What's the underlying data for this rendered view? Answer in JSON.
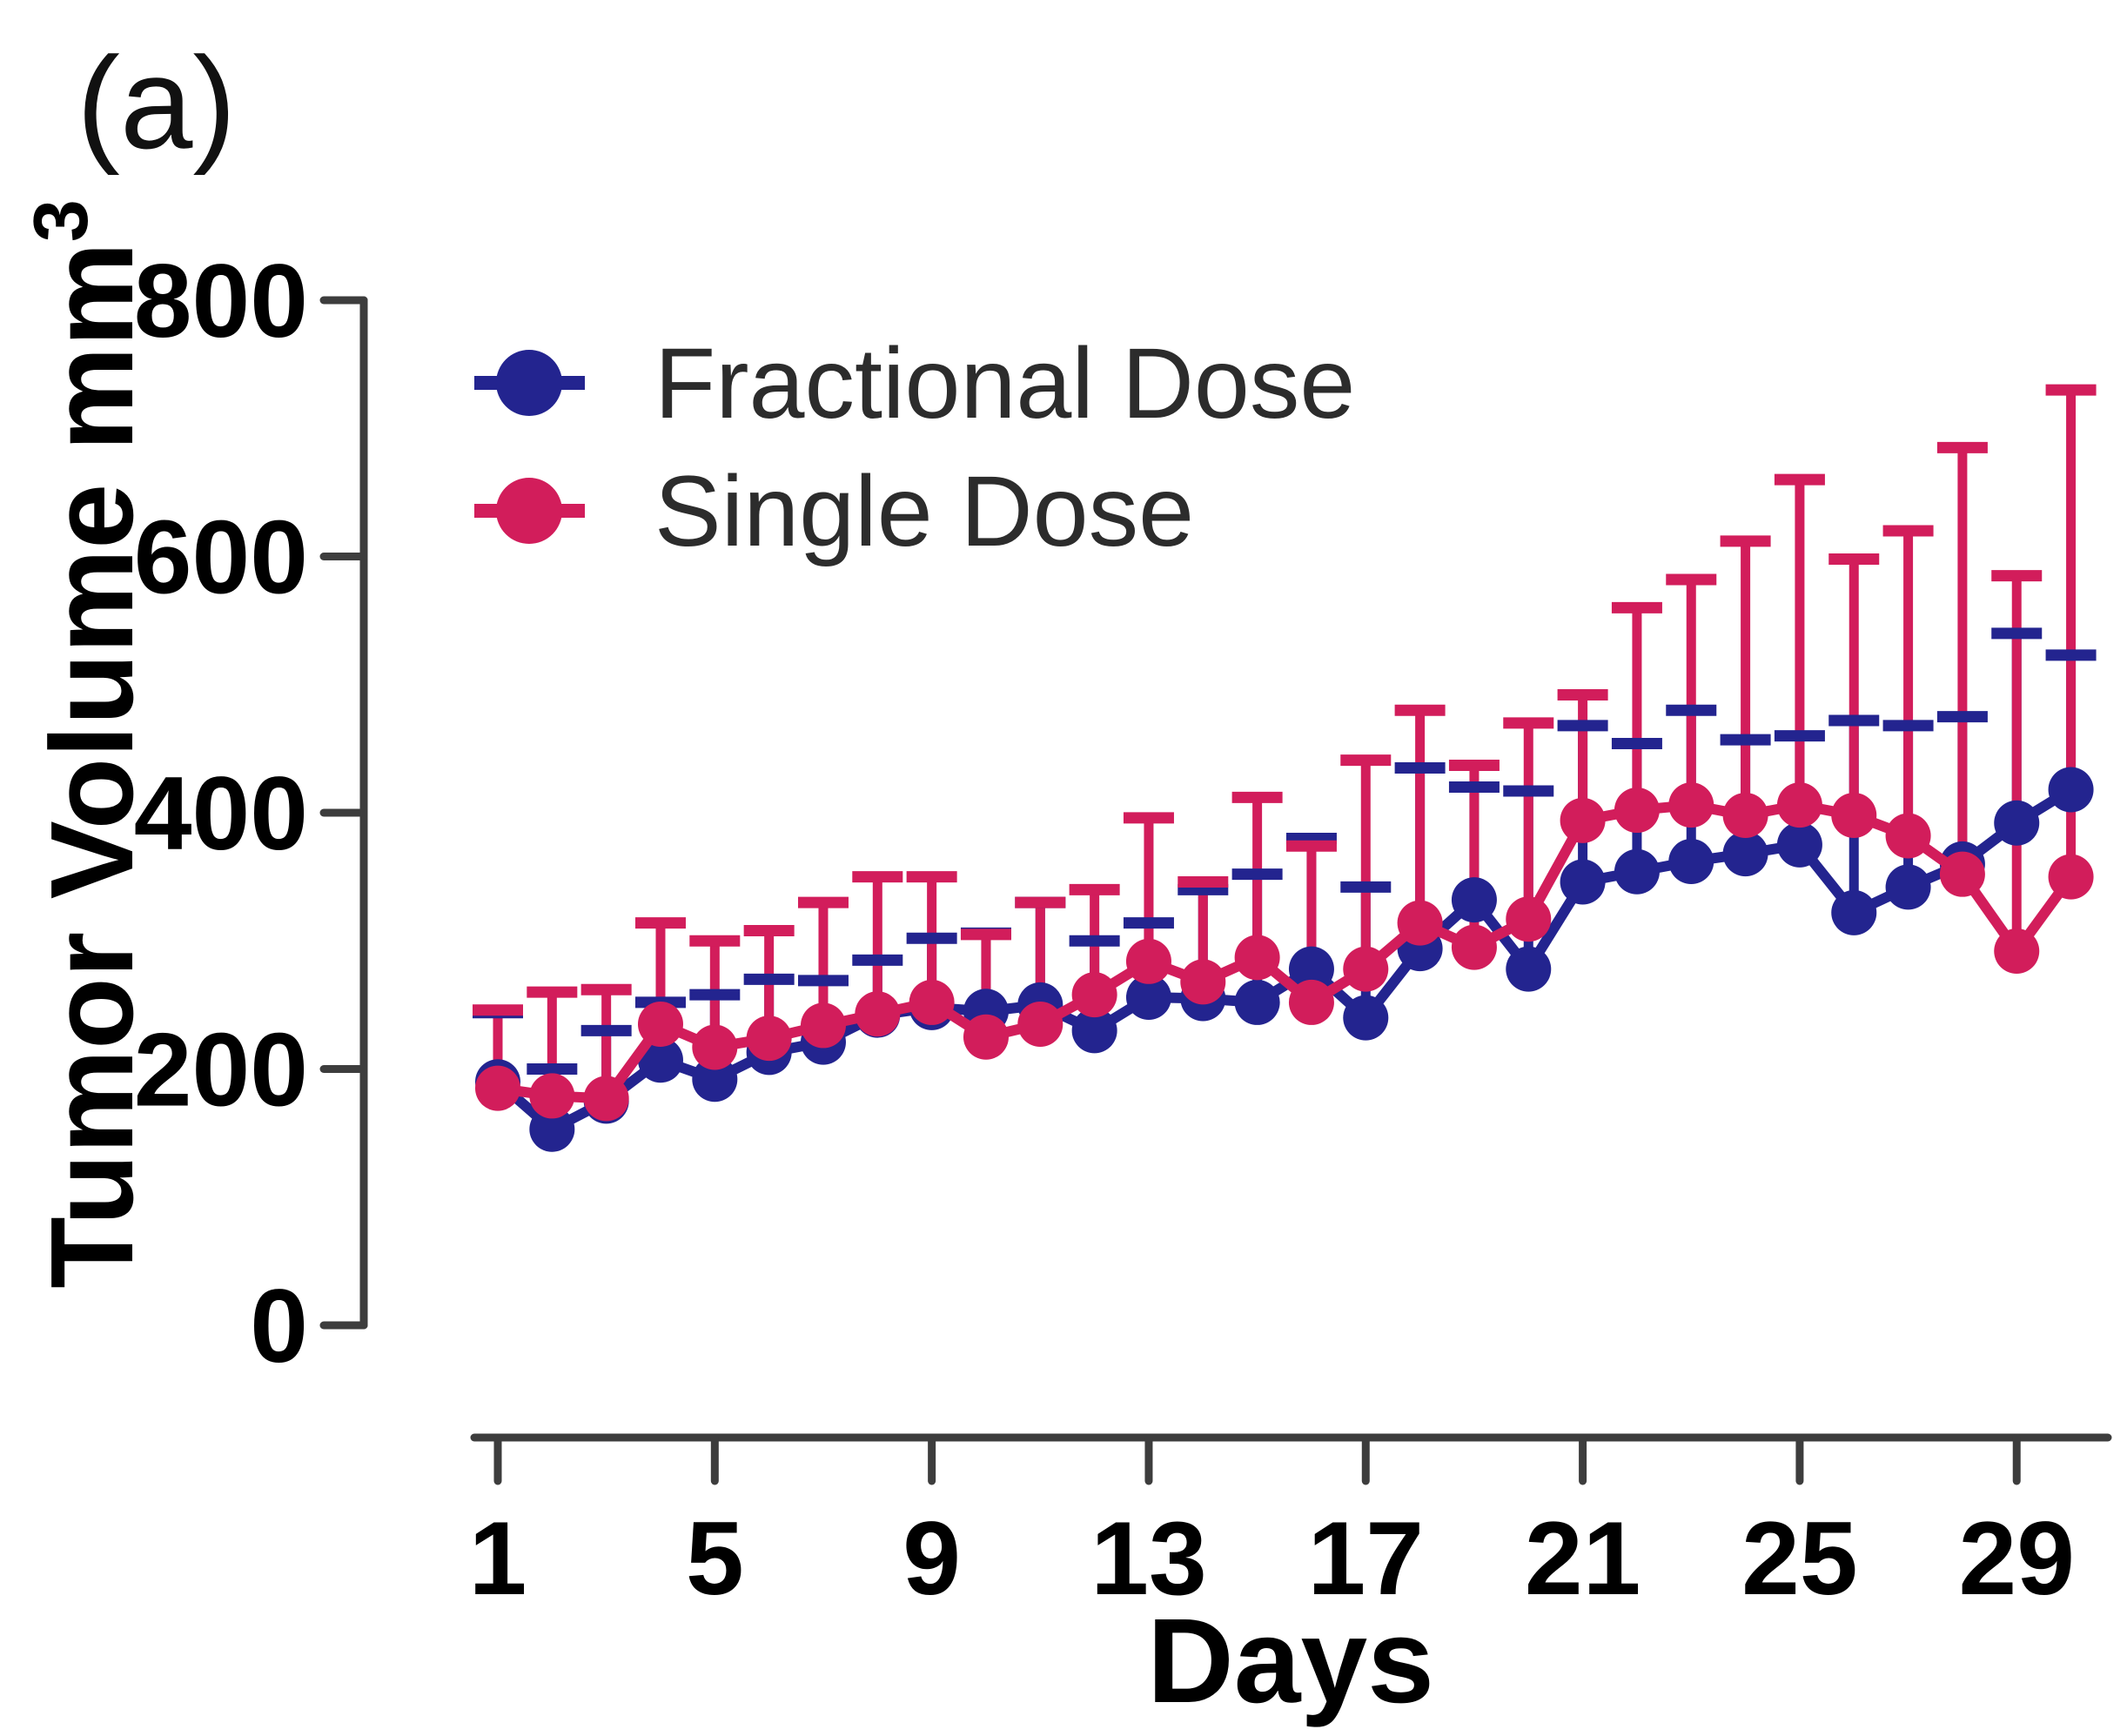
{
  "panel_label": "(a)",
  "colors": {
    "fractional": "#23248f",
    "single": "#d21d5b",
    "axis": "#3d3d3d",
    "text": "#000000",
    "legend_text": "#2c2c2c",
    "background": "#ffffff"
  },
  "legend": {
    "items": [
      {
        "label": "Fractional Dose",
        "color": "#23248f"
      },
      {
        "label": "Single Dose",
        "color": "#d21d5b"
      }
    ]
  },
  "chart_data": {
    "type": "line",
    "title": "",
    "xlabel": "Days",
    "ylabel": "Tumor Volume mm³",
    "ylabel_main": "Tumor Volume mm",
    "ylabel_sup": "3",
    "xlim": [
      1,
      30
    ],
    "ylim": [
      0,
      800
    ],
    "xticks": [
      1,
      5,
      9,
      13,
      17,
      21,
      25,
      29
    ],
    "yticks": [
      0,
      200,
      400,
      600,
      800
    ],
    "grid": false,
    "legend_position": "top-left-inside",
    "error_bars": "upper-only, capped",
    "x": [
      1,
      2,
      3,
      4,
      5,
      6,
      7,
      8,
      9,
      10,
      11,
      12,
      13,
      14,
      15,
      16,
      17,
      18,
      19,
      20,
      21,
      22,
      23,
      24,
      25,
      26,
      27,
      28,
      29,
      30
    ],
    "series": [
      {
        "name": "Fractional Dose",
        "color": "#23248f",
        "marker": "circle",
        "values": [
          190,
          153,
          175,
          207,
          192,
          213,
          221,
          242,
          248,
          245,
          250,
          230,
          256,
          255,
          252,
          278,
          240,
          294,
          332,
          278,
          346,
          354,
          362,
          368,
          375,
          322,
          342,
          360,
          392,
          418
        ],
        "error_top": [
          244,
          200,
          230,
          252,
          258,
          270,
          269,
          285,
          302,
          306,
          330,
          300,
          314,
          340,
          352,
          380,
          342,
          435,
          420,
          417,
          468,
          454,
          480,
          457,
          460,
          472,
          468,
          475,
          540,
          523
        ]
      },
      {
        "name": "Single Dose",
        "color": "#d21d5b",
        "marker": "circle",
        "values": [
          185,
          179,
          177,
          235,
          217,
          224,
          234,
          243,
          252,
          225,
          235,
          258,
          284,
          268,
          287,
          252,
          278,
          314,
          295,
          317,
          394,
          402,
          406,
          398,
          406,
          398,
          382,
          352,
          292,
          350
        ],
        "error_top": [
          246,
          260,
          262,
          314,
          300,
          308,
          330,
          350,
          350,
          305,
          330,
          340,
          396,
          346,
          412,
          374,
          441,
          480,
          437,
          470,
          492,
          560,
          582,
          612,
          660,
          598,
          620,
          685,
          585,
          730
        ]
      }
    ]
  }
}
